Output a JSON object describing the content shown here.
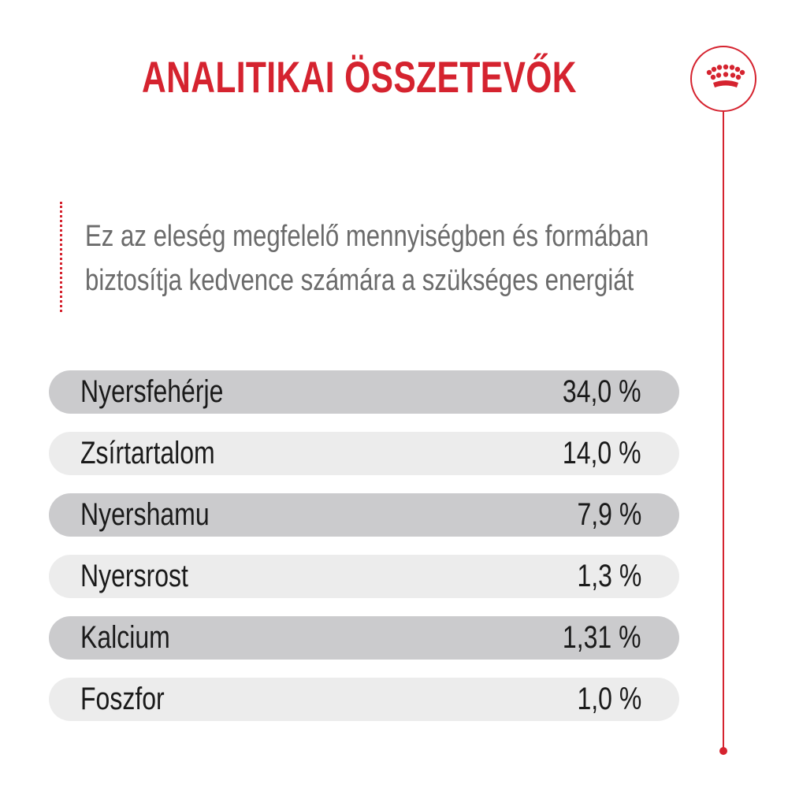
{
  "title": "ANALITIKAI ÖSSZETEVŐK",
  "logo": {
    "icon": "crown-icon",
    "color": "#d5232f"
  },
  "intro": {
    "line1": "Ez az eleség megfelelő mennyiségben és formában",
    "line2": "biztosítja kedvence számára a szükséges energiát"
  },
  "colors": {
    "accent": "#d5232f",
    "row_dark": "#cbcbcd",
    "row_light": "#ececec",
    "text_dark": "#1a1a1a",
    "text_grey": "#6b6b6b"
  },
  "nutrients": [
    {
      "label": "Nyersfehérje",
      "value": "34,0 %"
    },
    {
      "label": "Zsírtartalom",
      "value": "14,0 %"
    },
    {
      "label": "Nyershamu",
      "value": "7,9 %"
    },
    {
      "label": "Nyersrost",
      "value": "1,3 %"
    },
    {
      "label": "Kalcium",
      "value": "1,31 %"
    },
    {
      "label": "Foszfor",
      "value": "1,0 %"
    }
  ]
}
